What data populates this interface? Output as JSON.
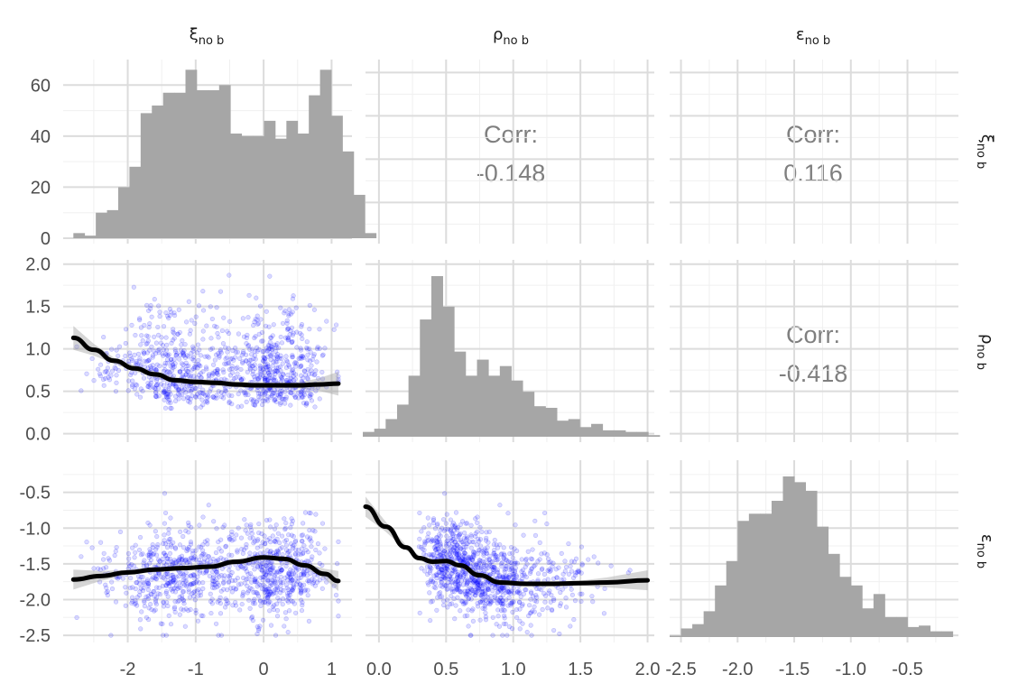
{
  "chart_data": {
    "type": "scatter",
    "subtype": "pairs-plot",
    "variables": [
      {
        "name": "ξ",
        "sub": "no b"
      },
      {
        "name": "ρ",
        "sub": "no b"
      },
      {
        "name": "ε",
        "sub": "no b"
      }
    ],
    "panels_background": "white",
    "grid": true,
    "point_color": "#0000ff",
    "hist_color": "#a6a6a6",
    "smooth_color": "#000000",
    "ranges": {
      "xi": [
        -2.95,
        1.3
      ],
      "rho": [
        -0.1,
        2.05
      ],
      "eps": [
        -2.6,
        -0.05
      ]
    },
    "ticks": {
      "xi": [
        "-2",
        "-1",
        "0",
        "1"
      ],
      "rho": [
        "0.0",
        "0.5",
        "1.0",
        "1.5",
        "2.0"
      ],
      "eps": [
        "-2.5",
        "-2.0",
        "-1.5",
        "-1.0",
        "-0.5"
      ],
      "xi_count": [
        "0",
        "20",
        "40",
        "60"
      ]
    },
    "correlations": [
      {
        "label": "Corr:",
        "value": "-0.148",
        "pair": "ξ-ρ"
      },
      {
        "label": "Corr:",
        "value": "0.116",
        "pair": "ξ-ε"
      },
      {
        "label": "Corr:",
        "value": "-0.418",
        "pair": "ρ-ε"
      }
    ],
    "hist_xi": {
      "start": -2.8,
      "width": 0.165,
      "counts": [
        2,
        1,
        10,
        11,
        20,
        28,
        49,
        52,
        57,
        57,
        66,
        58,
        58,
        60,
        41,
        40,
        40,
        46,
        39,
        46,
        41,
        56,
        66,
        48,
        34,
        17,
        2
      ]
    },
    "hist_rho": {
      "start": -0.12,
      "width": 0.085,
      "counts": [
        3,
        5,
        11,
        20,
        38,
        73,
        100,
        81,
        53,
        38,
        48,
        38,
        44,
        35,
        28,
        19,
        18,
        10,
        11,
        6,
        8,
        4,
        4,
        3,
        3,
        1
      ]
    },
    "hist_eps": {
      "start": -2.6,
      "width": 0.1,
      "counts": [
        1,
        6,
        9,
        18,
        36,
        53,
        81,
        86,
        86,
        95,
        112,
        108,
        102,
        77,
        58,
        42,
        36,
        20,
        30,
        14,
        14,
        7,
        8,
        4,
        4
      ]
    },
    "smooth_rho_vs_xi": {
      "x": [
        -2.8,
        -2.5,
        -2.2,
        -1.9,
        -1.6,
        -1.3,
        -1.0,
        -0.7,
        -0.4,
        -0.1,
        0.2,
        0.5,
        0.8,
        1.1
      ],
      "y": [
        1.13,
        0.99,
        0.86,
        0.77,
        0.7,
        0.63,
        0.61,
        0.6,
        0.58,
        0.57,
        0.57,
        0.57,
        0.58,
        0.59
      ]
    },
    "smooth_eps_vs_xi": {
      "x": [
        -2.8,
        -2.4,
        -2.0,
        -1.6,
        -1.2,
        -0.8,
        -0.4,
        0.0,
        0.3,
        0.6,
        0.9,
        1.1
      ],
      "y": [
        -1.72,
        -1.67,
        -1.62,
        -1.58,
        -1.56,
        -1.54,
        -1.47,
        -1.41,
        -1.43,
        -1.52,
        -1.64,
        -1.74
      ]
    },
    "smooth_eps_vs_rho": {
      "x": [
        -0.1,
        0.05,
        0.2,
        0.3,
        0.4,
        0.5,
        0.6,
        0.75,
        0.9,
        1.1,
        1.3,
        1.5,
        1.7,
        2.0
      ],
      "y": [
        -0.7,
        -0.98,
        -1.27,
        -1.42,
        -1.47,
        -1.46,
        -1.52,
        -1.66,
        -1.76,
        -1.78,
        -1.78,
        -1.77,
        -1.76,
        -1.73
      ]
    }
  }
}
